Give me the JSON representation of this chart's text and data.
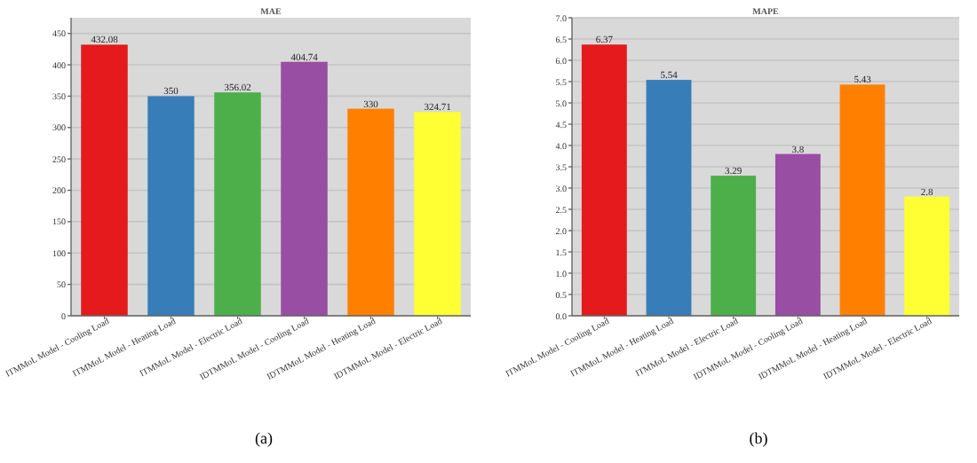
{
  "chart_data": [
    {
      "type": "bar",
      "title": "MAE",
      "categories": [
        "ITMMoL Model - Cooling Load",
        "ITMMoL Model - Heating Load",
        "ITMMoL Model - Electric Load",
        "IDTMMoL Model - Cooling Load",
        "IDTMMoL Model - Heating Load",
        "IDTMMoL Model - Electric Load"
      ],
      "values": [
        432.08,
        350,
        356.02,
        404.74,
        330,
        324.71
      ],
      "colors": [
        "#e41a1c",
        "#377eb8",
        "#4daf4a",
        "#984ea3",
        "#ff7f00",
        "#ffff33"
      ],
      "ylim": [
        0,
        475
      ],
      "yticks": [
        0,
        50,
        100,
        150,
        200,
        250,
        300,
        350,
        400,
        450
      ],
      "grid": "y",
      "data_labels": true,
      "annotations": [
        "(a)"
      ]
    },
    {
      "type": "bar",
      "title": "MAPE",
      "categories": [
        "ITMMoL Model - Cooling Load",
        "ITMMoL Model - Heating Load",
        "ITMMoL Model - Electric Load",
        "IDTMMoL Model - Cooling Load",
        "IDTMMoL Model - Heating Load",
        "IDTMMoL Model - Electric Load"
      ],
      "values": [
        6.37,
        5.54,
        3.29,
        3.8,
        5.43,
        2.8
      ],
      "colors": [
        "#e41a1c",
        "#377eb8",
        "#4daf4a",
        "#984ea3",
        "#ff7f00",
        "#ffff33"
      ],
      "ylim": [
        0,
        7
      ],
      "yticks": [
        {
          "value": 0,
          "label": "0.0"
        },
        {
          "value": 0.5,
          "label": "0.5"
        },
        {
          "value": 1,
          "label": "1.0"
        },
        {
          "value": 1.5,
          "label": "1.5"
        },
        {
          "value": 2,
          "label": "2.0"
        },
        {
          "value": 2.5,
          "label": "2.5"
        },
        {
          "value": 3,
          "label": "3.0"
        },
        {
          "value": 3.5,
          "label": "3.5"
        },
        {
          "value": 4,
          "label": "4.0"
        },
        {
          "value": 4.5,
          "label": "4.5"
        },
        {
          "value": 5,
          "label": "5.0"
        },
        {
          "value": 5.5,
          "label": "5.5"
        },
        {
          "value": 6,
          "label": "6.0"
        },
        {
          "value": 6.5,
          "label": "6.5"
        },
        {
          "value": 7,
          "label": "7.0"
        }
      ],
      "grid": "y",
      "data_labels": true,
      "annotations": [
        "(b)"
      ]
    }
  ]
}
